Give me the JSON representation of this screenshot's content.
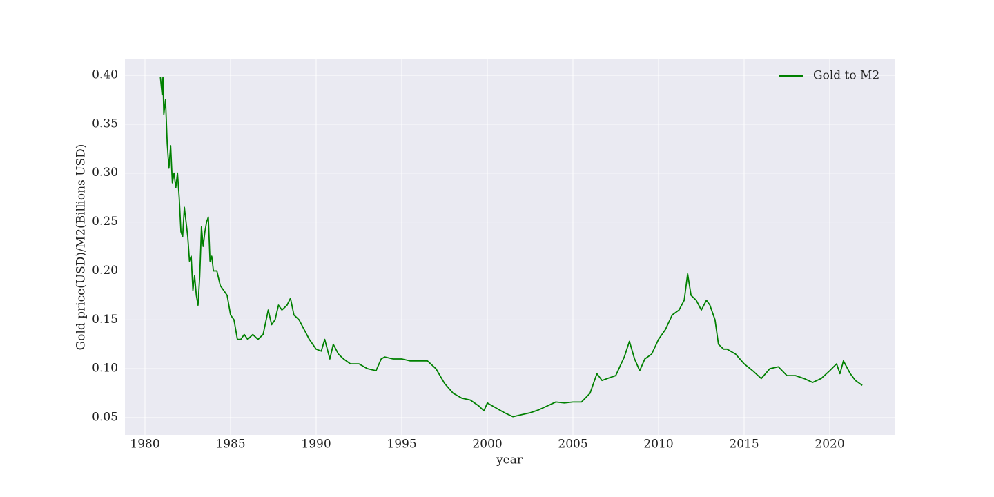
{
  "chart_data": {
    "type": "line",
    "xlabel": "year",
    "ylabel": "Gold price(USD)/M2(Billions USD)",
    "xlim": [
      1978.83,
      2023.79
    ],
    "ylim": [
      0.0324,
      0.4162
    ],
    "xticks": [
      1980,
      1985,
      1990,
      1995,
      2000,
      2005,
      2010,
      2015,
      2020
    ],
    "yticks": [
      0.05,
      {
        "value": 0.1,
        "label": "0.10"
      },
      0.15,
      {
        "value": 0.2,
        "label": "0.20"
      },
      0.25,
      {
        "value": 0.3,
        "label": "0.30"
      },
      0.35,
      {
        "value": 0.4,
        "label": "0.40"
      }
    ],
    "grid": true,
    "legend": "upper right",
    "series": [
      {
        "name": "Gold to M2",
        "color": "#008000",
        "x": [
          1980.9,
          1981.0,
          1981.05,
          1981.1,
          1981.2,
          1981.3,
          1981.4,
          1981.5,
          1981.6,
          1981.7,
          1981.8,
          1981.9,
          1982.0,
          1982.1,
          1982.2,
          1982.3,
          1982.4,
          1982.5,
          1982.6,
          1982.7,
          1982.8,
          1982.9,
          1983.0,
          1983.1,
          1983.2,
          1983.3,
          1983.4,
          1983.5,
          1983.6,
          1983.7,
          1983.8,
          1983.9,
          1984.0,
          1984.2,
          1984.4,
          1984.6,
          1984.8,
          1985.0,
          1985.2,
          1985.4,
          1985.6,
          1985.8,
          1986.0,
          1986.3,
          1986.6,
          1986.9,
          1987.2,
          1987.4,
          1987.6,
          1987.8,
          1988.0,
          1988.3,
          1988.5,
          1988.7,
          1989.0,
          1989.3,
          1989.6,
          1990.0,
          1990.3,
          1990.5,
          1990.8,
          1991.0,
          1991.3,
          1991.6,
          1992.0,
          1992.5,
          1993.0,
          1993.5,
          1993.8,
          1994.0,
          1994.5,
          1995.0,
          1995.5,
          1996.0,
          1996.5,
          1997.0,
          1997.5,
          1998.0,
          1998.5,
          1999.0,
          1999.5,
          1999.8,
          2000.0,
          2000.5,
          2001.0,
          2001.5,
          2002.0,
          2002.5,
          2003.0,
          2003.5,
          2004.0,
          2004.5,
          2005.0,
          2005.5,
          2006.0,
          2006.4,
          2006.7,
          2007.0,
          2007.5,
          2008.0,
          2008.3,
          2008.6,
          2008.9,
          2009.2,
          2009.6,
          2010.0,
          2010.4,
          2010.8,
          2011.2,
          2011.5,
          2011.7,
          2011.9,
          2012.2,
          2012.5,
          2012.8,
          2013.0,
          2013.3,
          2013.5,
          2013.8,
          2014.0,
          2014.5,
          2015.0,
          2015.5,
          2016.0,
          2016.5,
          2017.0,
          2017.5,
          2018.0,
          2018.5,
          2019.0,
          2019.5,
          2020.0,
          2020.4,
          2020.6,
          2020.8,
          2021.2,
          2021.5,
          2021.9
        ],
        "values": [
          0.398,
          0.38,
          0.398,
          0.36,
          0.375,
          0.33,
          0.305,
          0.328,
          0.29,
          0.3,
          0.285,
          0.3,
          0.275,
          0.24,
          0.235,
          0.265,
          0.25,
          0.235,
          0.21,
          0.215,
          0.18,
          0.195,
          0.175,
          0.165,
          0.195,
          0.245,
          0.225,
          0.24,
          0.25,
          0.255,
          0.21,
          0.215,
          0.2,
          0.2,
          0.185,
          0.18,
          0.175,
          0.155,
          0.15,
          0.13,
          0.13,
          0.135,
          0.13,
          0.135,
          0.13,
          0.135,
          0.16,
          0.145,
          0.15,
          0.165,
          0.16,
          0.165,
          0.172,
          0.155,
          0.15,
          0.14,
          0.13,
          0.12,
          0.118,
          0.13,
          0.11,
          0.125,
          0.115,
          0.11,
          0.105,
          0.105,
          0.1,
          0.098,
          0.11,
          0.112,
          0.11,
          0.11,
          0.108,
          0.108,
          0.108,
          0.1,
          0.085,
          0.075,
          0.07,
          0.068,
          0.062,
          0.057,
          0.065,
          0.06,
          0.055,
          0.051,
          0.053,
          0.055,
          0.058,
          0.062,
          0.066,
          0.065,
          0.066,
          0.066,
          0.075,
          0.095,
          0.088,
          0.09,
          0.093,
          0.112,
          0.128,
          0.11,
          0.098,
          0.11,
          0.115,
          0.13,
          0.14,
          0.155,
          0.16,
          0.17,
          0.197,
          0.175,
          0.17,
          0.16,
          0.17,
          0.165,
          0.15,
          0.125,
          0.12,
          0.12,
          0.115,
          0.105,
          0.098,
          0.09,
          0.1,
          0.102,
          0.093,
          0.093,
          0.09,
          0.086,
          0.09,
          0.098,
          0.105,
          0.095,
          0.108,
          0.095,
          0.088,
          0.083
        ]
      }
    ]
  }
}
